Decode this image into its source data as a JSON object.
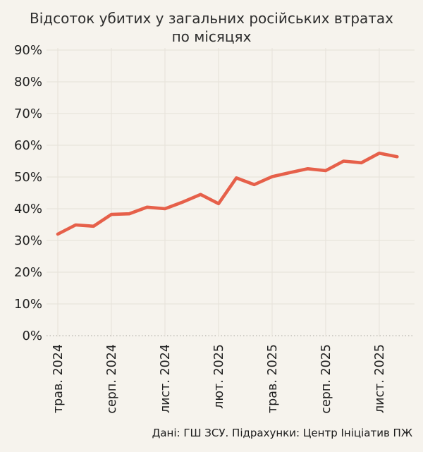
{
  "title": "Відсоток убитих у загальних російських втратах по місяцях",
  "source_caption": "Дані: ГШ ЗСУ. Підрахунки: Центр Ініціатив ПЖ",
  "colors": {
    "background": "#f6f3ed",
    "line": "#e6604a",
    "grid": "#e8e4dc",
    "zero_line": "#b8b5ae",
    "text": "#1f1f1f",
    "title_text": "#2d2d2d"
  },
  "chart_data": {
    "type": "line",
    "title": "Відсоток убитих у загальних російських втратах по місяцях",
    "xlabel": "",
    "ylabel": "",
    "x_frequency": "monthly",
    "x_tick_labels": [
      "трав. 2024",
      "серп. 2024",
      "лист. 2024",
      "лют. 2025",
      "трав. 2025",
      "серп. 2025",
      "лист. 2025"
    ],
    "x_tick_indices": [
      0,
      3,
      6,
      9,
      12,
      15,
      18
    ],
    "values": [
      32.0,
      34.9,
      34.5,
      38.2,
      38.4,
      40.5,
      40.0,
      42.1,
      44.5,
      41.6,
      49.7,
      47.6,
      50.1,
      51.4,
      52.6,
      52.0,
      55.0,
      54.5,
      57.5,
      56.4
    ],
    "y_ticks": [
      0,
      10,
      20,
      30,
      40,
      50,
      60,
      70,
      80,
      90
    ],
    "y_tick_suffix": "%",
    "ylim": [
      0,
      92
    ],
    "grid": true,
    "zero_line_style": "dotted",
    "legend": "none"
  }
}
